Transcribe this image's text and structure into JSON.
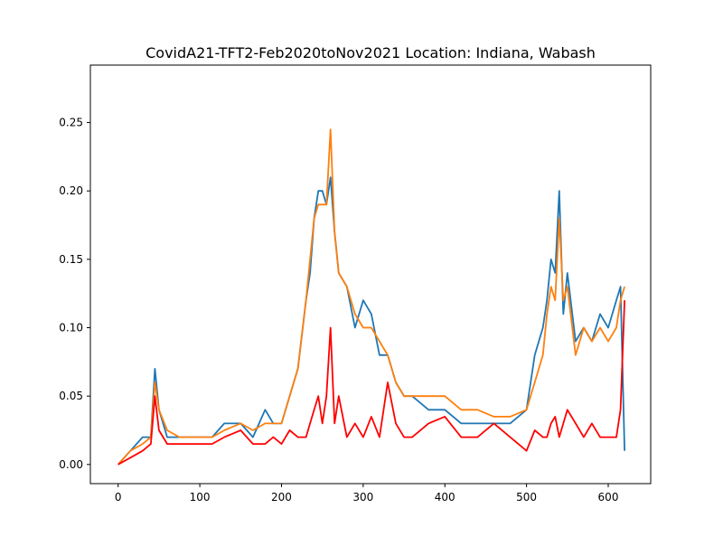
{
  "chart_data": {
    "type": "line",
    "title": "CovidA21-TFT2-Feb2020toNov2021 Location: Indiana, Wabash",
    "xlabel": "",
    "ylabel": "",
    "xlim": [
      -34,
      652
    ],
    "ylim": [
      -0.014,
      0.292
    ],
    "x_ticks": [
      0,
      100,
      200,
      300,
      400,
      500,
      600
    ],
    "y_ticks": [
      0.0,
      0.05,
      0.1,
      0.15,
      0.2,
      0.25
    ],
    "y_tick_labels": [
      "0.00",
      "0.05",
      "0.10",
      "0.15",
      "0.20",
      "0.25"
    ],
    "grid": false,
    "legend": "none",
    "x": [
      0,
      15,
      30,
      40,
      45,
      50,
      60,
      75,
      90,
      100,
      115,
      130,
      150,
      165,
      180,
      190,
      200,
      210,
      220,
      230,
      235,
      240,
      245,
      250,
      255,
      260,
      265,
      270,
      280,
      290,
      300,
      310,
      320,
      330,
      340,
      350,
      360,
      380,
      400,
      420,
      440,
      460,
      480,
      500,
      510,
      520,
      525,
      530,
      535,
      540,
      545,
      550,
      560,
      570,
      580,
      590,
      600,
      610,
      615,
      620
    ],
    "series": [
      {
        "color": "#1f77b4",
        "values": [
          0,
          0.01,
          0.02,
          0.02,
          0.07,
          0.04,
          0.02,
          0.02,
          0.02,
          0.02,
          0.02,
          0.03,
          0.03,
          0.02,
          0.04,
          0.03,
          0.03,
          0.05,
          0.07,
          0.12,
          0.14,
          0.18,
          0.2,
          0.2,
          0.19,
          0.21,
          0.17,
          0.14,
          0.13,
          0.1,
          0.12,
          0.11,
          0.08,
          0.08,
          0.06,
          0.05,
          0.05,
          0.04,
          0.04,
          0.03,
          0.03,
          0.03,
          0.03,
          0.04,
          0.08,
          0.1,
          0.12,
          0.15,
          0.14,
          0.2,
          0.11,
          0.14,
          0.09,
          0.1,
          0.09,
          0.11,
          0.1,
          0.12,
          0.13,
          0.01
        ]
      },
      {
        "color": "#ff7f0e",
        "values": [
          0,
          0.01,
          0.015,
          0.02,
          0.06,
          0.04,
          0.025,
          0.02,
          0.02,
          0.02,
          0.02,
          0.025,
          0.03,
          0.025,
          0.03,
          0.03,
          0.03,
          0.05,
          0.07,
          0.12,
          0.15,
          0.18,
          0.19,
          0.19,
          0.19,
          0.245,
          0.17,
          0.14,
          0.13,
          0.11,
          0.1,
          0.1,
          0.09,
          0.08,
          0.06,
          0.05,
          0.05,
          0.05,
          0.05,
          0.04,
          0.04,
          0.035,
          0.035,
          0.04,
          0.06,
          0.08,
          0.11,
          0.13,
          0.12,
          0.18,
          0.12,
          0.13,
          0.08,
          0.1,
          0.09,
          0.1,
          0.09,
          0.1,
          0.12,
          0.13
        ]
      },
      {
        "color": "#ff0000",
        "values": [
          0,
          0.005,
          0.01,
          0.015,
          0.05,
          0.025,
          0.015,
          0.015,
          0.015,
          0.015,
          0.015,
          0.02,
          0.025,
          0.015,
          0.015,
          0.02,
          0.015,
          0.025,
          0.02,
          0.02,
          0.03,
          0.04,
          0.05,
          0.03,
          0.05,
          0.1,
          0.03,
          0.05,
          0.02,
          0.03,
          0.02,
          0.035,
          0.02,
          0.06,
          0.03,
          0.02,
          0.02,
          0.03,
          0.035,
          0.02,
          0.02,
          0.03,
          0.02,
          0.01,
          0.025,
          0.02,
          0.02,
          0.03,
          0.035,
          0.02,
          0.03,
          0.04,
          0.03,
          0.02,
          0.03,
          0.02,
          0.02,
          0.02,
          0.04,
          0.12
        ]
      }
    ]
  }
}
